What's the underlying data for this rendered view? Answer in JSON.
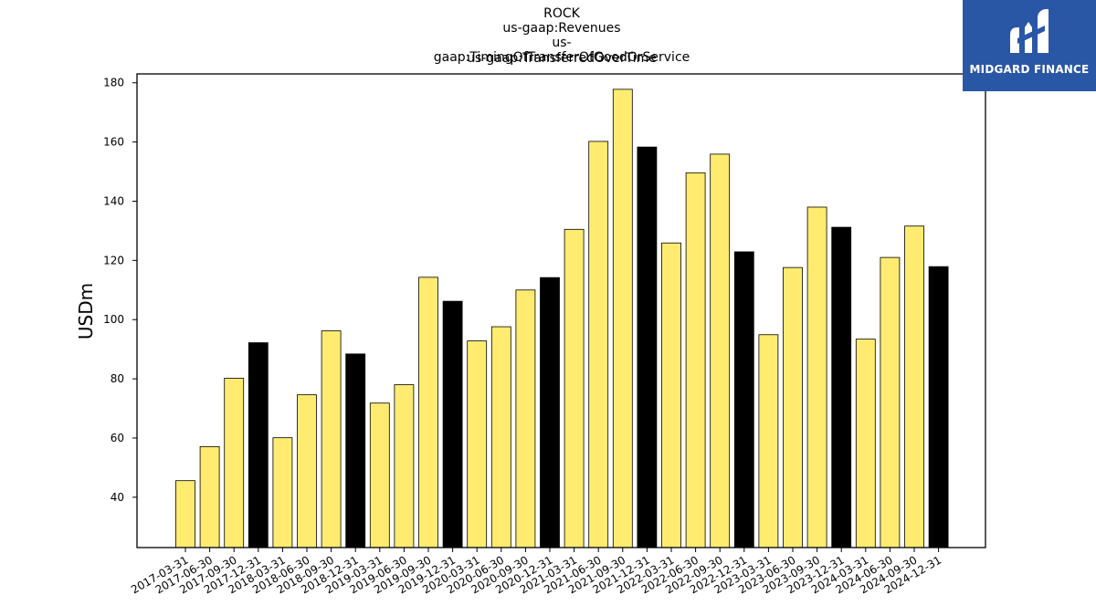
{
  "chart_data": {
    "type": "bar",
    "title_lines": [
      "ROCK",
      "us-gaap:Revenues",
      "us-gaap:TimingOfTransferOfGoodOrService",
      "us-gaap:TransferredOverTime"
    ],
    "ylabel": "USDm",
    "xlabel": "",
    "ylim": [
      23,
      183
    ],
    "yticks": [
      40,
      60,
      80,
      100,
      120,
      140,
      160,
      180
    ],
    "grid": false,
    "colors": {
      "quarter": "#ffeb70",
      "year_end": "#000000",
      "edge": "#000000"
    },
    "categories": [
      "2017-03-31",
      "2017-06-30",
      "2017-09-30",
      "2017-12-31",
      "2018-03-31",
      "2018-06-30",
      "2018-09-30",
      "2018-12-31",
      "2019-03-31",
      "2019-06-30",
      "2019-09-30",
      "2019-12-31",
      "2020-03-31",
      "2020-06-30",
      "2020-09-30",
      "2020-12-31",
      "2021-03-31",
      "2021-06-30",
      "2021-09-30",
      "2021-12-31",
      "2022-03-31",
      "2022-06-30",
      "2022-09-30",
      "2022-12-31",
      "2023-03-31",
      "2023-06-30",
      "2023-09-30",
      "2023-12-31",
      "2024-03-31",
      "2024-06-30",
      "2024-09-30",
      "2024-12-31"
    ],
    "values": [
      45.6,
      57.1,
      80.2,
      92.2,
      60.1,
      74.6,
      96.2,
      88.4,
      71.8,
      78.0,
      114.3,
      106.2,
      92.8,
      97.6,
      110.0,
      114.2,
      130.5,
      160.2,
      177.8,
      158.3,
      125.9,
      149.6,
      155.9,
      122.9,
      94.9,
      117.6,
      138.0,
      131.2,
      93.4,
      121.0,
      131.6,
      117.9
    ],
    "year_end": [
      false,
      false,
      false,
      true,
      false,
      false,
      false,
      true,
      false,
      false,
      false,
      true,
      false,
      false,
      false,
      true,
      false,
      false,
      false,
      true,
      false,
      false,
      false,
      true,
      false,
      false,
      false,
      true,
      false,
      false,
      false,
      true
    ]
  },
  "logo": {
    "text": "MIDGARD FINANCE"
  }
}
